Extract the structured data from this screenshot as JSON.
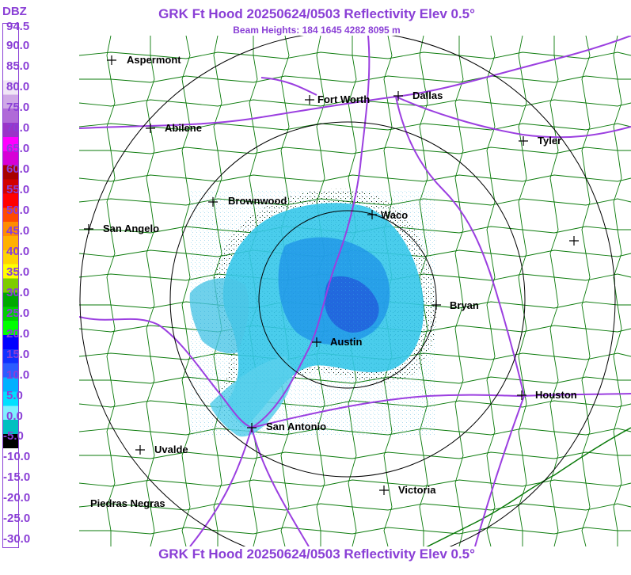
{
  "title": "GRK Ft Hood 20250624/0503 Reflectivity Elev 0.5°",
  "subtitle": "Beam Heights: 184 1645 4282 8095 m",
  "footer": "GRK Ft Hood 20250624/0503 Reflectivity Elev 0.5°",
  "legend": {
    "unit": "DBZ",
    "ticks": [
      "94.5",
      "90.0",
      "85.0",
      "80.0",
      "75.0",
      "70.0",
      "65.0",
      "60.0",
      "55.0",
      "50.0",
      "45.0",
      "40.0",
      "35.0",
      "30.0",
      "25.0",
      "20.0",
      "15.0",
      "10.0",
      "5.0",
      "0.0",
      "-5.0",
      "-10.0",
      "-15.0",
      "-20.0",
      "-25.0",
      "-30.0"
    ],
    "colors": [
      "#ffffff",
      "#ffffff",
      "#ffffff",
      "#ffffff",
      "#f0e6f6",
      "#cfa8e6",
      "#b06ad8",
      "#9a34c8",
      "#ff00ff",
      "#d600d6",
      "#a80000",
      "#d10000",
      "#ff0000",
      "#ff4b00",
      "#ff8c00",
      "#ffb000",
      "#ffd400",
      "#ffff00",
      "#7dcc00",
      "#00a800",
      "#00d000",
      "#00ff00",
      "#0000ff",
      "#1030ff",
      "#2c5cff",
      "#00b0ff",
      "#00e0ff",
      "#80f0ff",
      "#00c0c0",
      "#000000",
      "#ffffff",
      "#ffffff",
      "#ffffff",
      "#ffffff",
      "#ffffff",
      "#ffffff",
      "#ffffff"
    ]
  },
  "cities": [
    {
      "name": "Aspermont"
    },
    {
      "name": "Fort Worth"
    },
    {
      "name": "Dallas"
    },
    {
      "name": "Abilene"
    },
    {
      "name": "Tyler"
    },
    {
      "name": "Brownwood"
    },
    {
      "name": "Waco"
    },
    {
      "name": "San Angelo"
    },
    {
      "name": "Bryan"
    },
    {
      "name": "Austin"
    },
    {
      "name": "Houston"
    },
    {
      "name": "San Antonio"
    },
    {
      "name": "Uvalde"
    },
    {
      "name": "Victoria"
    },
    {
      "name": "Piedras Negras"
    }
  ],
  "colors": {
    "title": "#8a3fd6",
    "highway": "#9b3fe0",
    "county": "#0a7a0a",
    "rings": "#000000",
    "echo_light": "#36c8ea",
    "echo_mid": "#1e90e8",
    "echo_core": "#2050d8"
  }
}
